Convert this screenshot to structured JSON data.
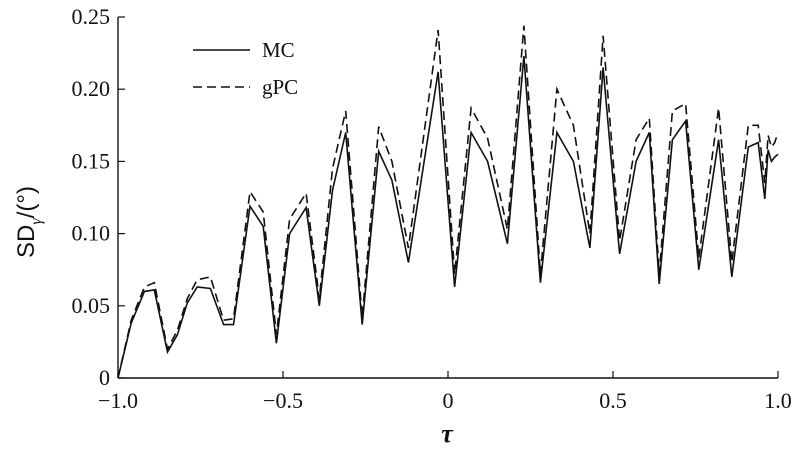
{
  "chart_data": {
    "type": "line",
    "title": "",
    "xlabel": "τ",
    "ylabel": {
      "main": "SD",
      "subscript": "γ",
      "unit": "/(°)"
    },
    "xlim": [
      -1.0,
      1.0
    ],
    "ylim": [
      0,
      0.25
    ],
    "x_ticks": [
      -1.0,
      -0.5,
      0,
      0.5,
      1.0
    ],
    "x_tick_labels": [
      "−1.0",
      "−0.5",
      "0",
      "0.5",
      "1.0"
    ],
    "y_ticks": [
      0,
      0.05,
      0.1,
      0.15,
      0.2,
      0.25
    ],
    "y_tick_labels": [
      "0",
      "0.05",
      "0.10",
      "0.15",
      "0.20",
      "0.25"
    ],
    "grid": false,
    "legend_position": "top-left",
    "series": [
      {
        "name": "MC",
        "style": "solid",
        "color": "#111111",
        "points": [
          [
            -1.0,
            0.0
          ],
          [
            -0.96,
            0.038
          ],
          [
            -0.92,
            0.06
          ],
          [
            -0.89,
            0.061
          ],
          [
            -0.85,
            0.018
          ],
          [
            -0.82,
            0.03
          ],
          [
            -0.79,
            0.052
          ],
          [
            -0.76,
            0.063
          ],
          [
            -0.72,
            0.062
          ],
          [
            -0.68,
            0.037
          ],
          [
            -0.65,
            0.037
          ],
          [
            -0.6,
            0.119
          ],
          [
            -0.56,
            0.105
          ],
          [
            -0.52,
            0.024
          ],
          [
            -0.48,
            0.1
          ],
          [
            -0.43,
            0.118
          ],
          [
            -0.39,
            0.05
          ],
          [
            -0.35,
            0.13
          ],
          [
            -0.31,
            0.17
          ],
          [
            -0.26,
            0.037
          ],
          [
            -0.21,
            0.157
          ],
          [
            -0.17,
            0.137
          ],
          [
            -0.12,
            0.08
          ],
          [
            -0.03,
            0.212
          ],
          [
            0.02,
            0.063
          ],
          [
            0.07,
            0.17
          ],
          [
            0.12,
            0.15
          ],
          [
            0.18,
            0.093
          ],
          [
            0.23,
            0.223
          ],
          [
            0.28,
            0.066
          ],
          [
            0.33,
            0.17
          ],
          [
            0.38,
            0.15
          ],
          [
            0.43,
            0.09
          ],
          [
            0.47,
            0.215
          ],
          [
            0.52,
            0.086
          ],
          [
            0.57,
            0.15
          ],
          [
            0.61,
            0.17
          ],
          [
            0.64,
            0.065
          ],
          [
            0.68,
            0.165
          ],
          [
            0.72,
            0.178
          ],
          [
            0.76,
            0.075
          ],
          [
            0.82,
            0.165
          ],
          [
            0.86,
            0.07
          ],
          [
            0.91,
            0.16
          ],
          [
            0.94,
            0.163
          ],
          [
            0.96,
            0.124
          ],
          [
            0.97,
            0.158
          ],
          [
            0.98,
            0.15
          ],
          [
            0.99,
            0.153
          ],
          [
            1.0,
            0.155
          ]
        ]
      },
      {
        "name": "gPC",
        "style": "dashed",
        "color": "#111111",
        "points": [
          [
            -1.0,
            0.0
          ],
          [
            -0.96,
            0.04
          ],
          [
            -0.92,
            0.063
          ],
          [
            -0.89,
            0.066
          ],
          [
            -0.85,
            0.02
          ],
          [
            -0.82,
            0.033
          ],
          [
            -0.79,
            0.055
          ],
          [
            -0.76,
            0.068
          ],
          [
            -0.72,
            0.07
          ],
          [
            -0.68,
            0.04
          ],
          [
            -0.65,
            0.041
          ],
          [
            -0.6,
            0.129
          ],
          [
            -0.56,
            0.115
          ],
          [
            -0.52,
            0.03
          ],
          [
            -0.48,
            0.11
          ],
          [
            -0.43,
            0.128
          ],
          [
            -0.39,
            0.055
          ],
          [
            -0.35,
            0.145
          ],
          [
            -0.31,
            0.185
          ],
          [
            -0.26,
            0.042
          ],
          [
            -0.21,
            0.174
          ],
          [
            -0.17,
            0.15
          ],
          [
            -0.12,
            0.09
          ],
          [
            -0.03,
            0.241
          ],
          [
            0.02,
            0.072
          ],
          [
            0.07,
            0.187
          ],
          [
            0.12,
            0.166
          ],
          [
            0.18,
            0.103
          ],
          [
            0.23,
            0.244
          ],
          [
            0.28,
            0.072
          ],
          [
            0.33,
            0.2
          ],
          [
            0.38,
            0.175
          ],
          [
            0.43,
            0.1
          ],
          [
            0.47,
            0.237
          ],
          [
            0.52,
            0.095
          ],
          [
            0.57,
            0.165
          ],
          [
            0.61,
            0.18
          ],
          [
            0.64,
            0.072
          ],
          [
            0.68,
            0.185
          ],
          [
            0.72,
            0.19
          ],
          [
            0.76,
            0.083
          ],
          [
            0.82,
            0.187
          ],
          [
            0.86,
            0.08
          ],
          [
            0.91,
            0.175
          ],
          [
            0.94,
            0.175
          ],
          [
            0.96,
            0.135
          ],
          [
            0.97,
            0.168
          ],
          [
            0.98,
            0.16
          ],
          [
            0.99,
            0.163
          ],
          [
            1.0,
            0.17
          ]
        ]
      }
    ]
  }
}
